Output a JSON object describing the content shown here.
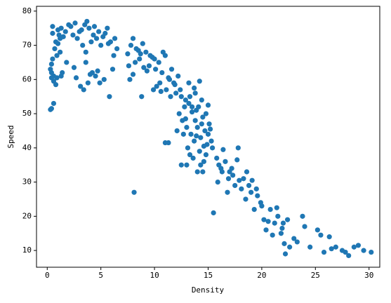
{
  "chart_data": {
    "type": "scatter",
    "x_label": "Density",
    "y_label": "Speed",
    "color": "#1f77b4",
    "xlim": [
      -1,
      31
    ],
    "ylim": [
      5.1,
      81.4
    ],
    "xticks": [
      0,
      5,
      10,
      15,
      20,
      25,
      30
    ],
    "yticks": [
      10,
      20,
      30,
      40,
      50,
      60,
      70,
      80
    ],
    "grid": false,
    "x": [
      0.3,
      0.4,
      0.5,
      0.6,
      0.4,
      0.5,
      0.7,
      0.8,
      1.0,
      1.2,
      0.6,
      0.9,
      1.1,
      1.3,
      1.5,
      1.7,
      2.0,
      2.2,
      2.4,
      2.6,
      2.8,
      3.0,
      3.3,
      3.5,
      3.7,
      3.9,
      4.1,
      4.3,
      0.5,
      0.9,
      1.4,
      1.8,
      2.5,
      3.1,
      3.6,
      4.0,
      4.5,
      0.8,
      1.0,
      1.3,
      2.7,
      3.4,
      3.8,
      4.2,
      0.4,
      0.6,
      1.2,
      3.2,
      3.6,
      0.3,
      0.4,
      4.8,
      5.0,
      5.3,
      5.6,
      5.9,
      6.2,
      6.5,
      4.6,
      5.2,
      5.8,
      6.1,
      4.9,
      5.4,
      6.3,
      5.7,
      4.4,
      4.7,
      7.5,
      7.8,
      8.0,
      8.3,
      8.6,
      8.9,
      9.2,
      9.5,
      9.8,
      10.1,
      10.4,
      10.7,
      11.0,
      11.3,
      7.7,
      8.2,
      8.8,
      9.3,
      9.9,
      10.5,
      11.1,
      11.6,
      8.5,
      9.0,
      9.6,
      10.2,
      10.8,
      11.5,
      11.9,
      12.2,
      7.6,
      8.0,
      8.7,
      10.0,
      10.6,
      11.4,
      12.0,
      12.5,
      12.8,
      11.8,
      12.3,
      12.6,
      12.9,
      13.0,
      13.2,
      13.4,
      13.5,
      13.7,
      13.8,
      14.0,
      14.1,
      14.3,
      14.5,
      14.7,
      14.9,
      15.1,
      12.4,
      12.7,
      13.1,
      13.3,
      13.6,
      13.9,
      14.2,
      14.4,
      14.6,
      14.8,
      15.0,
      15.3,
      12.1,
      12.9,
      13.3,
      13.7,
      14.0,
      14.4,
      14.8,
      15.2,
      15.4,
      13.0,
      13.5,
      13.9,
      14.3,
      14.6,
      15.0,
      12.5,
      13.2,
      13.8,
      14.2,
      14.5,
      11.0,
      11.3,
      8.1,
      15.5,
      15.8,
      16.0,
      16.3,
      16.6,
      16.9,
      17.2,
      17.5,
      17.8,
      18.1,
      15.9,
      16.4,
      16.8,
      17.3,
      17.7,
      18.3,
      16.2,
      17.0,
      17.9,
      18.5,
      18.8,
      19.0,
      19.3,
      19.6,
      19.9,
      20.2,
      18.6,
      19.1,
      19.5,
      20.0,
      20.4,
      20.8,
      21.2,
      21.5,
      21.8,
      22.1,
      22.4,
      20.6,
      21.0,
      21.4,
      21.9,
      22.2,
      22.0,
      23.0,
      23.8,
      24.5,
      25.2,
      25.8,
      26.3,
      26.9,
      27.5,
      28.1,
      28.6,
      29.0,
      29.5,
      30.2,
      24.0,
      25.5,
      26.5,
      27.8,
      22.6,
      23.3
    ],
    "values": [
      51.2,
      62,
      73.5,
      53,
      64.5,
      75.5,
      69,
      71,
      74.5,
      68,
      61,
      67,
      73,
      75,
      72.5,
      74,
      76,
      75.5,
      73,
      76.5,
      72,
      74,
      70,
      76,
      77,
      75,
      71,
      73,
      66,
      60.5,
      62,
      65,
      63.5,
      58,
      65,
      61.5,
      61,
      58.5,
      70.5,
      61,
      60.5,
      57,
      59,
      62,
      51.5,
      59.5,
      72,
      74.5,
      68,
      63,
      60.5,
      74,
      70,
      60,
      75,
      71,
      67,
      69,
      72,
      72.5,
      55,
      63,
      59,
      73.5,
      72,
      70.5,
      75.5,
      62.5,
      67.5,
      70,
      72,
      69,
      66,
      70.5,
      68,
      64,
      66.5,
      63,
      65,
      62,
      67,
      60.5,
      60,
      65,
      55,
      62.5,
      57,
      59,
      57,
      63,
      68.5,
      63.5,
      67,
      58,
      68,
      55,
      58.5,
      61,
      64,
      61.5,
      67.5,
      66,
      56.5,
      60,
      56,
      55,
      52,
      59,
      50,
      48,
      54,
      46,
      53,
      44,
      50.5,
      42,
      48,
      46,
      52,
      43,
      49,
      45,
      41,
      47,
      57,
      44,
      40,
      55,
      37,
      51,
      39,
      54,
      36,
      50,
      44,
      42,
      45,
      48.5,
      38,
      57.5,
      33,
      47,
      38,
      45.5,
      40,
      35,
      52,
      43.5,
      35,
      40.5,
      52.5,
      35,
      59,
      56,
      59.5,
      33,
      41.5,
      41.5,
      27,
      21,
      37,
      35,
      33,
      36,
      31,
      34,
      29,
      40,
      28,
      30,
      39.5,
      27,
      32,
      36.5,
      31,
      34,
      33,
      30.5,
      25,
      29,
      27,
      22,
      26,
      24,
      19,
      33,
      30.5,
      28,
      23,
      16,
      22,
      18,
      20,
      15,
      12,
      19,
      18.5,
      14.5,
      22.5,
      16.5,
      9,
      18,
      13.5,
      20,
      11,
      16,
      9.5,
      14,
      11,
      10,
      8.5,
      11,
      11.5,
      10,
      9.5,
      17,
      14.5,
      10.5,
      9.5,
      11,
      12.5
    ]
  }
}
